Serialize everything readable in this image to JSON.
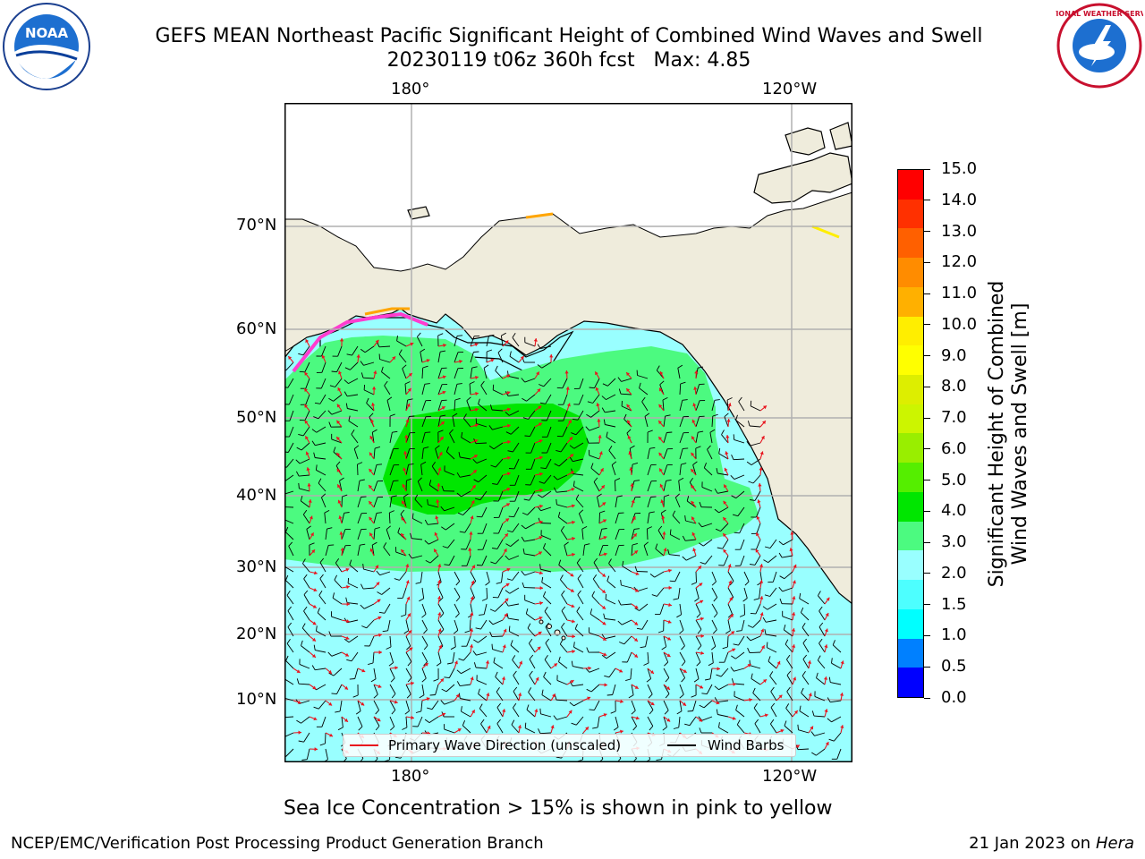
{
  "title": {
    "line1": "GEFS MEAN Northeast Pacific Significant Height of Combined Wind Waves and Swell",
    "line2": "20230119 t06z 360h fcst   Max: 4.85"
  },
  "map": {
    "top_lon_labels": [
      "180°",
      "120°W"
    ],
    "bottom_lon_labels": [
      "180°",
      "120°W"
    ],
    "lat_labels": [
      "70°N",
      "60°N",
      "50°N",
      "40°N",
      "30°N",
      "20°N",
      "10°N"
    ],
    "colors": {
      "land": "#efecdc",
      "wave_2_3": "#99ffff",
      "wave_3_4": "#4cfa80",
      "wave_4_5": "#00e600",
      "grid": "#b0b0b0",
      "wave_arrow": "#e8141e",
      "barb": "#000000",
      "ice_pink": "#ff3ccf",
      "ice_orange": "#ffa500",
      "ice_yellow": "#ffee00"
    }
  },
  "legend": {
    "wave_direction_label": "Primary Wave Direction (unscaled)",
    "wind_barbs_label": "Wind Barbs"
  },
  "colorbar": {
    "ticks": [
      "15.0",
      "14.0",
      "13.0",
      "12.0",
      "11.0",
      "10.0",
      "9.0",
      "8.0",
      "7.0",
      "6.0",
      "5.0",
      "4.0",
      "3.0",
      "2.0",
      "1.5",
      "1.0",
      "0.5",
      "0.0"
    ],
    "colors_bottom_to_top": [
      "#0000ff",
      "#0080ff",
      "#00ffff",
      "#4dffff",
      "#99ffff",
      "#4cfa80",
      "#00e600",
      "#55ee00",
      "#99ee00",
      "#ccf500",
      "#ddee00",
      "#ffff00",
      "#ffee00",
      "#ffb000",
      "#ff8c00",
      "#ff6000",
      "#ff3000",
      "#ff0000"
    ],
    "label_line1": "Significant Height of Combined",
    "label_line2": "Wind Waves and Swell [m]"
  },
  "caption": "Sea Ice Concentration > 15% is shown in pink to yellow",
  "footer": {
    "left": "NCEP/EMC/Verification Post Processing Product Generation Branch",
    "right_date": "21 Jan 2023 on",
    "right_machine": "Hera"
  },
  "logos": {
    "left_text": "NOAA",
    "right_text": "NATIONAL WEATHER SERVICE"
  }
}
